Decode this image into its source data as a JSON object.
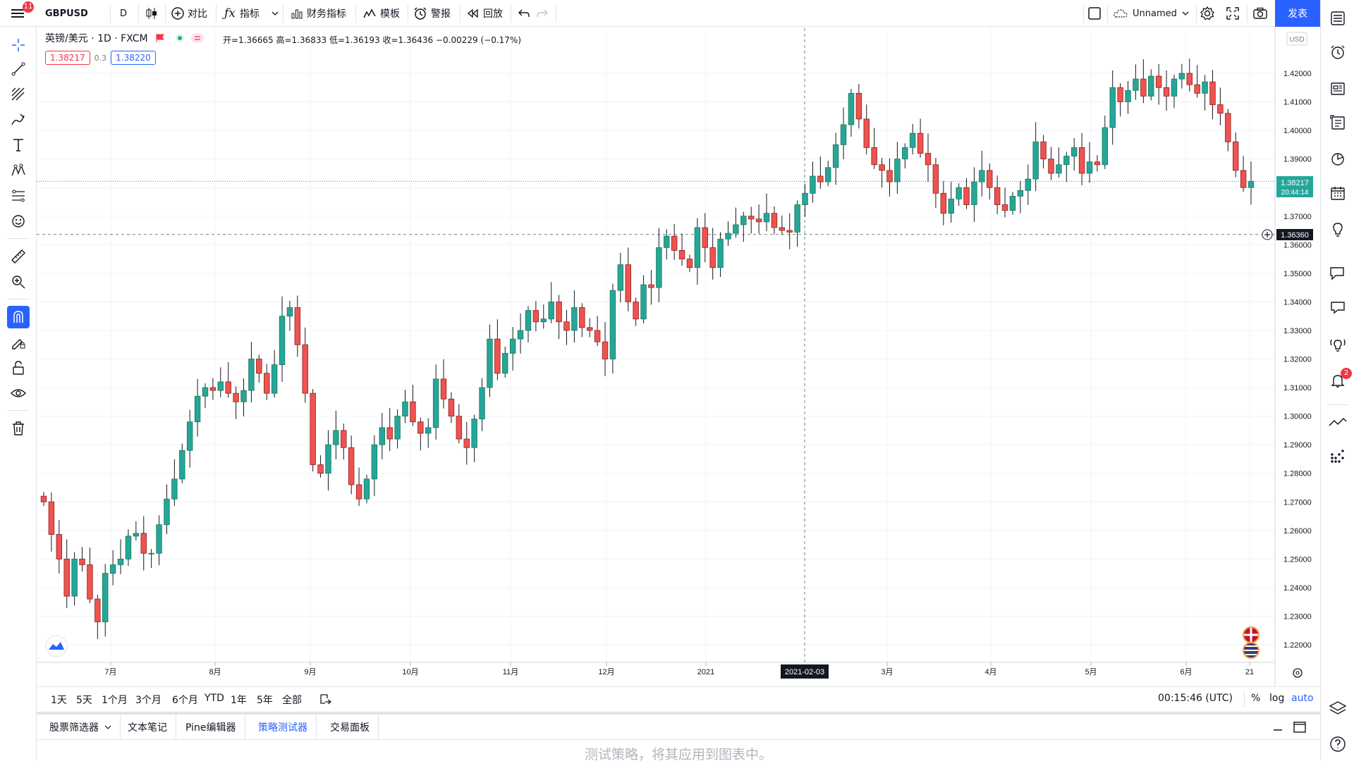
{
  "topbar": {
    "menu_badge": "11",
    "symbol": "GBPUSD",
    "interval": "D",
    "compare_label": "对比",
    "indicators_label": "指标",
    "financials_label": "财务指标",
    "templates_label": "模板",
    "alert_label": "警报",
    "replay_label": "回放",
    "layout_name": "Unnamed",
    "publish_label": "发表"
  },
  "legend": {
    "title": "英镑/美元 · 1D · FXCM",
    "ohlc": "开=1.36665 高=1.36833 低=1.36193 收=1.36436 −0.00229 (−0.17%)",
    "sell_price": "1.38217",
    "spread": "0.3",
    "buy_price": "1.38220"
  },
  "price_axis": {
    "currency": "USD",
    "last_price": "1.38217",
    "countdown": "20:44:14",
    "crosshair_price": "1.36360"
  },
  "time_axis": {
    "crosshair_date": "2021-02-03"
  },
  "range_bar": {
    "ranges": [
      "1天",
      "5天",
      "1个月",
      "3个月",
      "6个月",
      "YTD",
      "1年",
      "5年",
      "全部"
    ],
    "clock": "00:15:46 (UTC)",
    "percent": "%",
    "log": "log",
    "auto": "auto"
  },
  "bottom_panel": {
    "tabs": [
      "股票筛选器",
      "文本笔记",
      "Pine编辑器",
      "策略测试器",
      "交易面板"
    ],
    "active_tab": "策略测试器",
    "message": "测试策略，将其应用到图表中。"
  },
  "rightbar": {
    "alerts_badge": "2"
  },
  "colors": {
    "up": "#26a69a",
    "up_edge": "#1b7a55",
    "down": "#ef5350",
    "down_edge": "#8e1f1f",
    "accent": "#2962ff"
  },
  "chart_data": {
    "type": "candlestick",
    "symbol": "GBPUSD",
    "interval": "1D",
    "y_ticks": [
      "1.42000",
      "1.41000",
      "1.40000",
      "1.39000",
      "1.38000",
      "1.37000",
      "1.36000",
      "1.35000",
      "1.34000",
      "1.33000",
      "1.32000",
      "1.31000",
      "1.30000",
      "1.29000",
      "1.28000",
      "1.27000",
      "1.26000",
      "1.25000",
      "1.24000",
      "1.23000",
      "1.22000"
    ],
    "x_ticks": [
      "7月",
      "8月",
      "9月",
      "10月",
      "11月",
      "12月",
      "2021",
      "3月",
      "4月",
      "5月",
      "6月",
      "21"
    ],
    "ylim": [
      1.215,
      1.428
    ],
    "closes": [
      1.27,
      1.2586,
      1.25,
      1.237,
      1.25,
      1.248,
      1.236,
      1.228,
      1.245,
      1.248,
      1.25,
      1.258,
      1.259,
      1.252,
      1.252,
      1.262,
      1.271,
      1.278,
      1.288,
      1.298,
      1.307,
      1.31,
      1.309,
      1.312,
      1.308,
      1.305,
      1.309,
      1.32,
      1.315,
      1.308,
      1.318,
      1.335,
      1.338,
      1.325,
      1.308,
      1.283,
      1.28,
      1.29,
      1.295,
      1.289,
      1.276,
      1.271,
      1.278,
      1.29,
      1.296,
      1.292,
      1.3,
      1.305,
      1.298,
      1.294,
      1.296,
      1.313,
      1.306,
      1.3,
      1.292,
      1.289,
      1.299,
      1.31,
      1.327,
      1.315,
      1.322,
      1.327,
      1.33,
      1.337,
      1.333,
      1.334,
      1.34,
      1.333,
      1.33,
      1.338,
      1.331,
      1.33,
      1.326,
      1.32,
      1.344,
      1.353,
      1.34,
      1.334,
      1.346,
      1.345,
      1.359,
      1.363,
      1.358,
      1.355,
      1.352,
      1.366,
      1.359,
      1.352,
      1.362,
      1.364,
      1.367,
      1.37,
      1.369,
      1.368,
      1.371,
      1.366,
      1.365,
      1.3644,
      1.374,
      1.378,
      1.384,
      1.382,
      1.387,
      1.395,
      1.402,
      1.413,
      1.404,
      1.394,
      1.388,
      1.386,
      1.382,
      1.39,
      1.394,
      1.399,
      1.392,
      1.388,
      1.378,
      1.371,
      1.376,
      1.38,
      1.374,
      1.382,
      1.386,
      1.38,
      1.374,
      1.372,
      1.377,
      1.379,
      1.383,
      1.396,
      1.39,
      1.385,
      1.388,
      1.391,
      1.394,
      1.385,
      1.389,
      1.388,
      1.401,
      1.415,
      1.41,
      1.414,
      1.418,
      1.412,
      1.419,
      1.415,
      1.412,
      1.418,
      1.42,
      1.416,
      1.413,
      1.417,
      1.409,
      1.406,
      1.396,
      1.386,
      1.38,
      1.3822
    ]
  }
}
